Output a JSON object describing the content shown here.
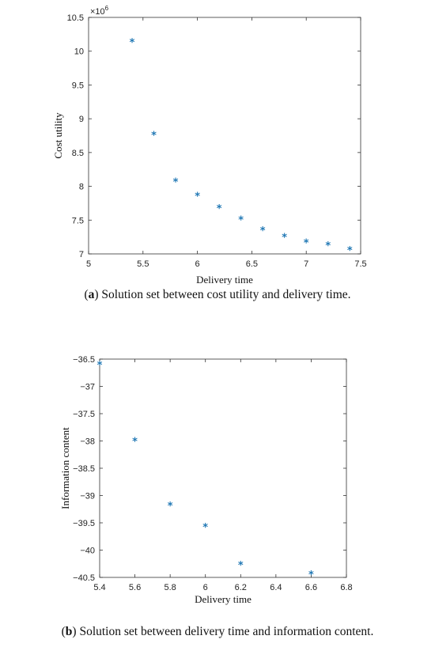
{
  "chart_data": [
    {
      "type": "scatter",
      "xlabel": "Delivery time",
      "ylabel": "Cost utility",
      "y_exponent_label": "×10",
      "y_exponent_power": "6",
      "xlim": [
        5,
        7.5
      ],
      "ylim": [
        7,
        10.5
      ],
      "x_ticks": [
        "5",
        "5.5",
        "6",
        "6.5",
        "7",
        "7.5"
      ],
      "y_ticks": [
        "7",
        "7.5",
        "8",
        "8.5",
        "9",
        "9.5",
        "10",
        "10.5"
      ],
      "marker": "*",
      "marker_color": "#1f77b4",
      "x": [
        5.4,
        5.6,
        5.8,
        6.0,
        6.2,
        6.4,
        6.6,
        6.8,
        7.0,
        7.2,
        7.4
      ],
      "y": [
        10.14,
        8.76,
        8.07,
        7.86,
        7.68,
        7.51,
        7.35,
        7.25,
        7.17,
        7.13,
        7.06
      ]
    },
    {
      "type": "scatter",
      "xlabel": "Delivery time",
      "ylabel": "Information content",
      "xlim": [
        5.4,
        6.8
      ],
      "ylim": [
        -40.5,
        -36.5
      ],
      "x_ticks": [
        "5.4",
        "5.6",
        "5.8",
        "6",
        "6.2",
        "6.4",
        "6.6",
        "6.8"
      ],
      "y_ticks": [
        "-36.5",
        "-37",
        "-37.5",
        "-38",
        "-38.5",
        "-39",
        "-39.5",
        "-40",
        "-40.5"
      ],
      "marker": "*",
      "marker_color": "#1f77b4",
      "x": [
        5.4,
        5.6,
        5.8,
        6.0,
        6.2,
        6.6
      ],
      "y": [
        -36.6,
        -38.0,
        -39.18,
        -39.57,
        -40.27,
        -40.44
      ]
    }
  ],
  "captions": {
    "a_label": "a",
    "a_text": " Solution set between cost utility and delivery time.",
    "b_label": "b",
    "b_text": " Solution set between delivery time and information content."
  }
}
